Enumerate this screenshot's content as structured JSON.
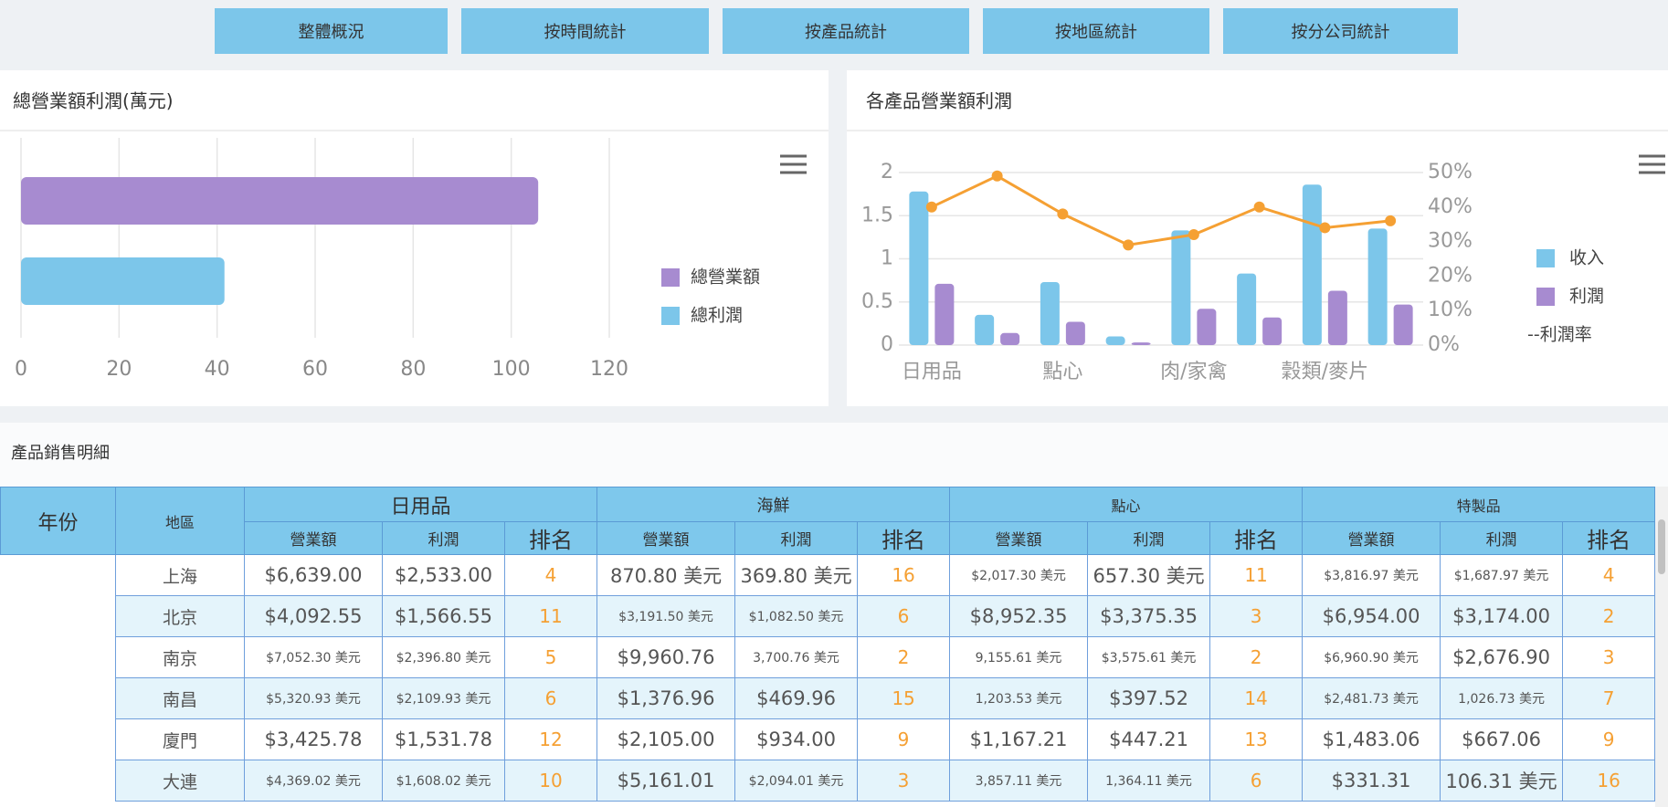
{
  "nav": {
    "buttons": [
      "整體概況",
      "按時間統計",
      "按產品統計",
      "按地區統計",
      "按分公司統計"
    ]
  },
  "chart_data": [
    {
      "type": "hbar",
      "title": "總營業額利潤(萬元)",
      "series": [
        {
          "name": "總營業額",
          "color": "#a78bd0",
          "values": [
            105.5
          ]
        },
        {
          "name": "總利潤",
          "color": "#7cc6ea",
          "values": [
            41.5
          ]
        }
      ],
      "xlim": [
        0,
        120
      ],
      "xticks": [
        0,
        20,
        40,
        60,
        80,
        100,
        120
      ],
      "grid": true,
      "legend": "right"
    },
    {
      "type": "bar-line",
      "title": "各產品營業額利潤",
      "categories": [
        "日用品",
        null,
        "點心",
        null,
        "肉/家禽",
        null,
        "穀類/麥片",
        null
      ],
      "series": [
        {
          "name": "收入",
          "color": "#7cc6ea",
          "values": [
            1.78,
            0.35,
            0.73,
            0.1,
            1.33,
            0.83,
            1.86,
            1.35
          ]
        },
        {
          "name": "利潤",
          "color": "#a78bd0",
          "values": [
            0.71,
            0.14,
            0.27,
            0.03,
            0.42,
            0.32,
            0.63,
            0.47
          ]
        },
        {
          "name": "--利潤率",
          "color": "#f5a033",
          "type": "line",
          "axis": "y2",
          "values": [
            40,
            49,
            38,
            29,
            32,
            40,
            34,
            36
          ]
        }
      ],
      "ylim": [
        0,
        2
      ],
      "yticks": [
        0,
        0.5,
        1,
        1.5,
        2
      ],
      "y2lim": [
        0,
        50
      ],
      "y2ticks": [
        {
          "value": 0,
          "label": "0%"
        },
        {
          "value": 10,
          "label": "10%"
        },
        {
          "value": 20,
          "label": "20%"
        },
        {
          "value": 30,
          "label": "30%"
        },
        {
          "value": 40,
          "label": "40%"
        },
        {
          "value": 50,
          "label": "50%"
        }
      ],
      "grid": true,
      "legend": "right"
    }
  ],
  "table": {
    "title": "產品銷售明細",
    "header": {
      "year": "年份",
      "region": "地區",
      "groups": [
        "日用品",
        "海鮮",
        "點心",
        "特製品"
      ],
      "subheaders": [
        "營業額",
        "利潤",
        "排名"
      ]
    },
    "rows": [
      [
        "上海",
        "$6,639.00",
        "$2,533.00",
        4,
        "870.80 美元",
        "369.80 美元",
        16,
        "$2,017.30 美元",
        "657.30 美元",
        11,
        "$3,816.97 美元",
        "$1,687.97 美元",
        4
      ],
      [
        "北京",
        "$4,092.55",
        "$1,566.55",
        11,
        "$3,191.50 美元",
        "$1,082.50 美元",
        6,
        "$8,952.35",
        "$3,375.35",
        3,
        "$6,954.00",
        "$3,174.00",
        2
      ],
      [
        "南京",
        "$7,052.30 美元",
        "$2,396.80 美元",
        5,
        "$9,960.76",
        "3,700.76 美元",
        2,
        "9,155.61 美元",
        "$3,575.61 美元",
        2,
        "$6,960.90 美元",
        "$2,676.90",
        3
      ],
      [
        "南昌",
        "$5,320.93 美元",
        "$2,109.93 美元",
        6,
        "$1,376.96",
        "$469.96",
        15,
        "1,203.53 美元",
        "$397.52",
        14,
        "$2,481.73 美元",
        "1,026.73 美元",
        7
      ],
      [
        "廈門",
        "$3,425.78",
        "$1,531.78",
        12,
        "$2,105.00",
        "$934.00",
        9,
        "$1,167.21",
        "$447.21",
        13,
        "$1,483.06",
        "$667.06",
        9
      ],
      [
        "大連",
        "$4,369.02 美元",
        "$1,608.02 美元",
        10,
        "$5,161.01",
        "$2,094.01 美元",
        3,
        "3,857.11 美元",
        "1,364.11 美元",
        6,
        "$331.31",
        "106.31 美元",
        16
      ]
    ]
  }
}
